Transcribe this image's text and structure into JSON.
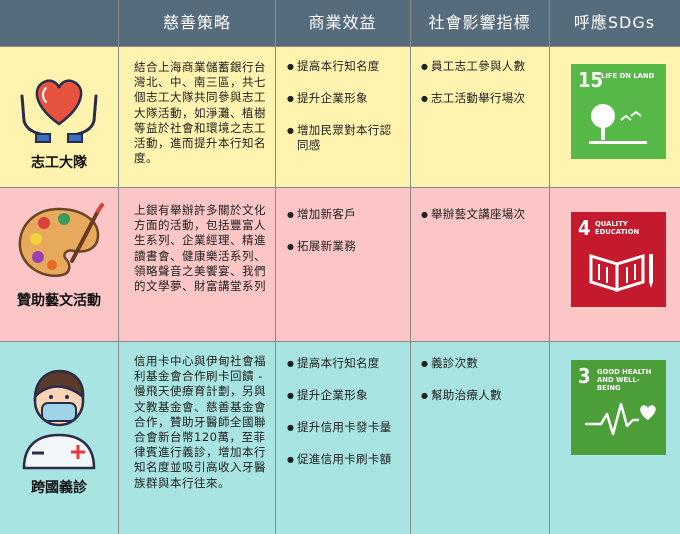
{
  "headers": [
    "慈善策略",
    "商業效益",
    "社會影響指標",
    "呼應SDGs"
  ],
  "rows": [
    {
      "name": "志工大隊",
      "icon": "heart-hands-icon",
      "description": "結合上海商業儲蓄銀行台灣北、中、南三區，共七個志工大隊共同參與志工大隊活動，如淨灘、植樹等益於社會和環境之志工活動，進而提升本行知名度。",
      "benefits": [
        "提高本行知名度",
        "提升企業形象",
        "增加民眾對本行認同感"
      ],
      "indicators": [
        "員工志工參與人數",
        "志工活動舉行場次"
      ],
      "sdg": {
        "number": "15",
        "title": "LIFE ON LAND",
        "color": "#56b947"
      }
    },
    {
      "name": "贊助藝文活動",
      "icon": "palette-icon",
      "description": "上銀有舉辦許多關於文化方面的活動，包括豐富人生系列、企業經理、精進讀書會、健康樂活系列、領略聲音之美饗宴、我們的文學夢、財富講堂系列",
      "benefits": [
        "增加新客戶",
        "拓展新業務"
      ],
      "indicators": [
        "舉辦藝文講座場次"
      ],
      "sdg": {
        "number": "4",
        "title": "QUALITY EDUCATION",
        "color": "#c5192d"
      }
    },
    {
      "name": "跨國義診",
      "icon": "doctor-icon",
      "description": "信用卡中心與伊甸社會福利基金會合作刷卡回饋 - 慢飛天使療育計劃，另與文教基金會、慈善基金會合作，贊助牙醫師全國聯合會新台幣120萬，至菲律賓進行義診，增加本行知名度並吸引高收入牙醫族群與本行往來。",
      "benefits": [
        "提高本行知名度",
        "提升企業形象",
        "提升信用卡發卡量",
        "促進信用卡刷卡額"
      ],
      "indicators": [
        "義診次數",
        "幫助治療人數"
      ],
      "sdg": {
        "number": "3",
        "title": "GOOD HEALTH AND WELL-BEING",
        "color": "#4c9f38"
      }
    }
  ]
}
